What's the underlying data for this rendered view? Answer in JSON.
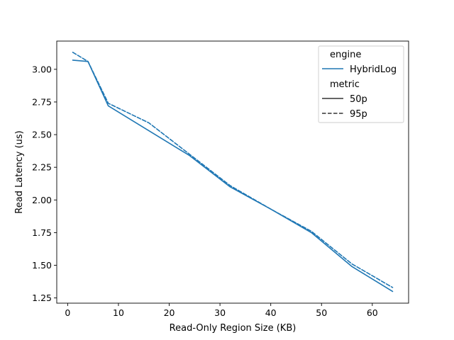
{
  "chart_data": {
    "type": "line",
    "xlabel": "Read-Only Region Size (KB)",
    "ylabel": "Read Latency (us)",
    "xlim": [
      -2.15,
      67.15
    ],
    "ylim": [
      1.21,
      3.216
    ],
    "x_ticks": [
      0,
      10,
      20,
      30,
      40,
      50,
      60
    ],
    "y_ticks": [
      1.25,
      1.5,
      1.75,
      2.0,
      2.25,
      2.5,
      2.75,
      3.0
    ],
    "grid": false,
    "legend": {
      "placement": "top-right",
      "hue_title": "engine",
      "hue_entries": [
        "HybridLog"
      ],
      "style_title": "metric",
      "style_entries": [
        "50p",
        "95p"
      ]
    },
    "color": "#1f77b4",
    "series": [
      {
        "engine": "HybridLog",
        "metric": "50p",
        "dash": "solid",
        "x": [
          1,
          4,
          8,
          16,
          24,
          32,
          40,
          48,
          56,
          64
        ],
        "y": [
          3.07,
          3.06,
          2.72,
          2.53,
          2.34,
          2.1,
          1.93,
          1.75,
          1.49,
          1.3
        ]
      },
      {
        "engine": "HybridLog",
        "metric": "95p",
        "dash": "dashed",
        "x": [
          1,
          4,
          8,
          16,
          24,
          32,
          40,
          48,
          56,
          64
        ],
        "y": [
          3.13,
          3.06,
          2.74,
          2.59,
          2.35,
          2.11,
          1.93,
          1.76,
          1.51,
          1.33
        ]
      }
    ]
  }
}
